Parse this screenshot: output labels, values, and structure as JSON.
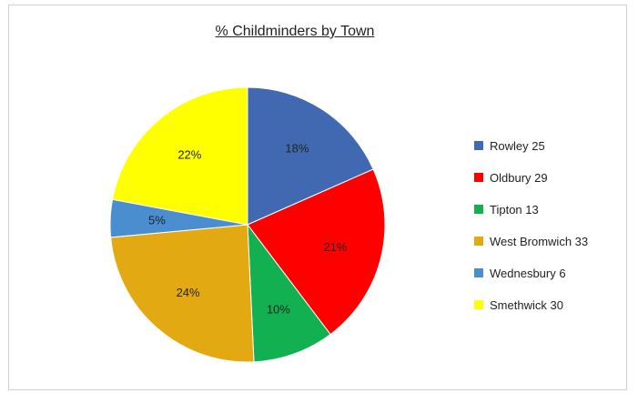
{
  "chart_data": {
    "type": "pie",
    "title": "% Childminders by Town",
    "slices": [
      {
        "legend": "Rowley 25",
        "value": 25,
        "label": "18%",
        "color": "#4069b2"
      },
      {
        "legend": "Oldbury 29",
        "value": 29,
        "label": "21%",
        "color": "#ff0000"
      },
      {
        "legend": "Tipton 13",
        "value": 13,
        "label": "10%",
        "color": "#12b050"
      },
      {
        "legend": "West Bromwich 33",
        "value": 33,
        "label": "24%",
        "color": "#e3a912"
      },
      {
        "legend": "Wednesbury 6",
        "value": 6,
        "label": "5%",
        "color": "#4a8ed0"
      },
      {
        "legend": "Smethwick 30",
        "value": 30,
        "label": "22%",
        "color": "#ffff00"
      }
    ],
    "legend_position": "right"
  }
}
